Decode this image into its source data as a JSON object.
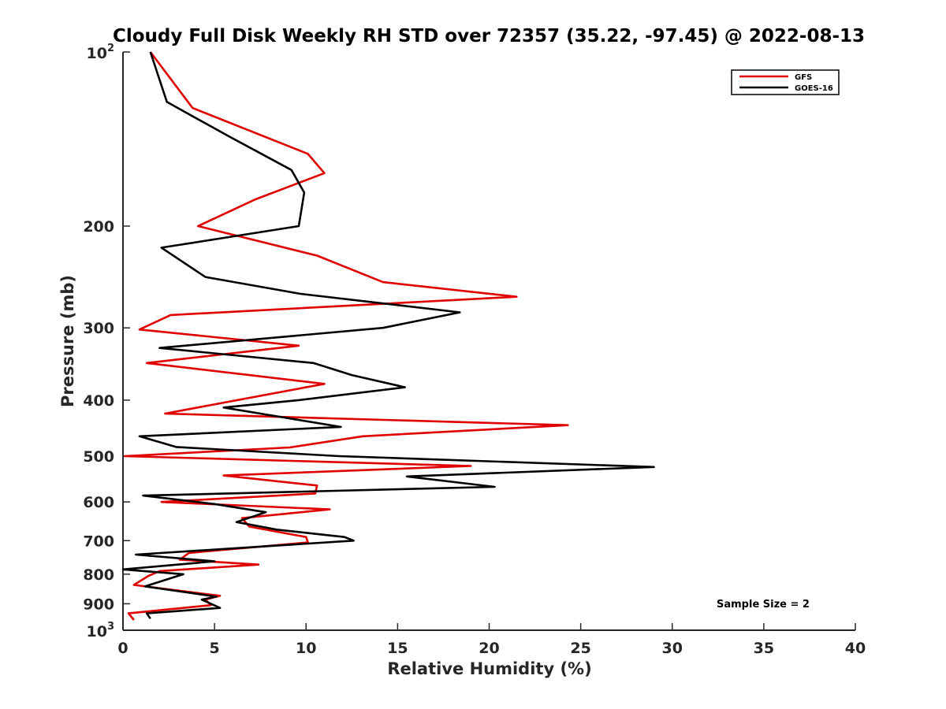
{
  "chart_data": {
    "type": "line",
    "title": "Cloudy Full Disk Weekly RH STD over 72357 (35.22, -97.45) @ 2022-08-13",
    "xlabel": "Relative Humidity (%)",
    "ylabel": "Pressure (mb)",
    "xlim": [
      0,
      40
    ],
    "ylim": [
      100,
      1000
    ],
    "y_scale": "log",
    "y_reversed": true,
    "grid": false,
    "legend_position": "top-right",
    "x_ticks": [
      "0",
      "5",
      "10",
      "15",
      "20",
      "25",
      "30",
      "35",
      "40"
    ],
    "y_ticks": [
      {
        "value": 100,
        "base": "10",
        "exp": "2"
      },
      {
        "value": 200,
        "label": "200"
      },
      {
        "value": 300,
        "label": "300"
      },
      {
        "value": 400,
        "label": "400"
      },
      {
        "value": 500,
        "label": "500"
      },
      {
        "value": 600,
        "label": "600"
      },
      {
        "value": 700,
        "label": "700"
      },
      {
        "value": 800,
        "label": "800"
      },
      {
        "value": 900,
        "label": "900"
      },
      {
        "value": 1000,
        "base": "10",
        "exp": "3"
      }
    ],
    "annotation": "Sample Size = 2",
    "series": [
      {
        "name": "GFS",
        "color": "#e00000",
        "points": [
          [
            1.5,
            100
          ],
          [
            3.8,
            125
          ],
          [
            10.1,
            150
          ],
          [
            11.0,
            162
          ],
          [
            7.2,
            180
          ],
          [
            4.1,
            200
          ],
          [
            10.6,
            225
          ],
          [
            14.2,
            250
          ],
          [
            21.5,
            265
          ],
          [
            2.6,
            285
          ],
          [
            0.9,
            302
          ],
          [
            9.6,
            322
          ],
          [
            1.3,
            345
          ],
          [
            11.0,
            375
          ],
          [
            2.3,
            422
          ],
          [
            24.3,
            442
          ],
          [
            13.1,
            462
          ],
          [
            9.1,
            483
          ],
          [
            0.1,
            500
          ],
          [
            19.0,
            520
          ],
          [
            5.5,
            540
          ],
          [
            10.6,
            562
          ],
          [
            10.5,
            580
          ],
          [
            2.1,
            600
          ],
          [
            11.3,
            618
          ],
          [
            6.5,
            640
          ],
          [
            6.9,
            662
          ],
          [
            10.0,
            690
          ],
          [
            10.1,
            705
          ],
          [
            3.6,
            735
          ],
          [
            3.1,
            755
          ],
          [
            7.4,
            770
          ],
          [
            2.0,
            790
          ],
          [
            1.4,
            805
          ],
          [
            0.6,
            835
          ],
          [
            5.3,
            872
          ],
          [
            4.5,
            885
          ],
          [
            4.8,
            905
          ],
          [
            0.3,
            935
          ],
          [
            0.6,
            960
          ]
        ]
      },
      {
        "name": "GOES-16",
        "color": "#000000",
        "points": [
          [
            1.5,
            100
          ],
          [
            2.4,
            122
          ],
          [
            5.8,
            140
          ],
          [
            9.2,
            160
          ],
          [
            9.9,
            175
          ],
          [
            9.6,
            200
          ],
          [
            2.1,
            218
          ],
          [
            4.5,
            245
          ],
          [
            9.7,
            262
          ],
          [
            18.4,
            282
          ],
          [
            14.2,
            300
          ],
          [
            2.0,
            325
          ],
          [
            10.4,
            345
          ],
          [
            12.5,
            362
          ],
          [
            15.4,
            380
          ],
          [
            9.6,
            400
          ],
          [
            5.5,
            412
          ],
          [
            11.9,
            445
          ],
          [
            0.9,
            462
          ],
          [
            2.9,
            482
          ],
          [
            11.8,
            500
          ],
          [
            29.0,
            522
          ],
          [
            15.5,
            542
          ],
          [
            20.3,
            565
          ],
          [
            1.1,
            585
          ],
          [
            5.0,
            605
          ],
          [
            7.8,
            625
          ],
          [
            6.2,
            650
          ],
          [
            8.4,
            670
          ],
          [
            12.1,
            690
          ],
          [
            12.6,
            700
          ],
          [
            0.7,
            740
          ],
          [
            5.0,
            760
          ],
          [
            0.0,
            785
          ],
          [
            3.3,
            800
          ],
          [
            1.2,
            840
          ],
          [
            5.1,
            875
          ],
          [
            4.3,
            885
          ],
          [
            5.3,
            915
          ],
          [
            1.3,
            935
          ],
          [
            1.5,
            955
          ]
        ]
      }
    ]
  }
}
